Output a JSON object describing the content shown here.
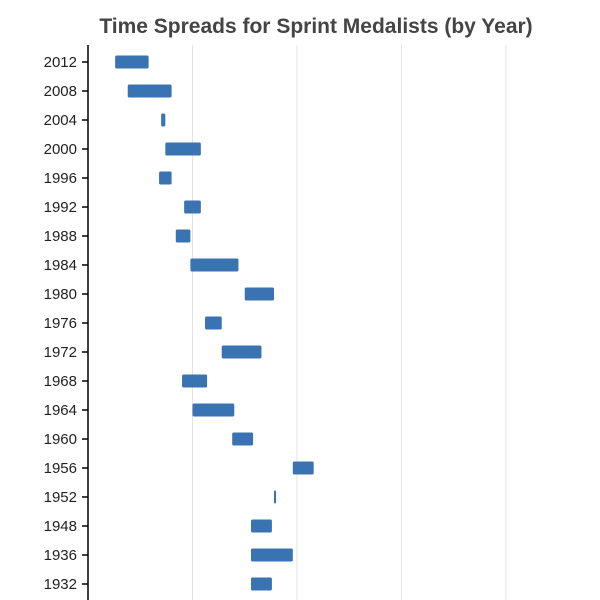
{
  "chart_data": {
    "type": "bar",
    "subtype": "floating-range",
    "title": "Time Spreads for Sprint Medalists (by Year)",
    "xlabel": "",
    "ylabel": "",
    "grid": true,
    "bar_color": "#3a73b2",
    "categories": [
      "2012",
      "2008",
      "2004",
      "2000",
      "1996",
      "1992",
      "1988",
      "1984",
      "1980",
      "1976",
      "1972",
      "1968",
      "1964",
      "1960",
      "1956",
      "1952",
      "1948",
      "1936",
      "1932"
    ],
    "ranges": [
      [
        9.63,
        9.79
      ],
      [
        9.69,
        9.9
      ],
      [
        9.85,
        9.87
      ],
      [
        9.87,
        10.04
      ],
      [
        9.84,
        9.9
      ],
      [
        9.96,
        10.04
      ],
      [
        9.92,
        9.99
      ],
      [
        9.99,
        10.22
      ],
      [
        10.25,
        10.39
      ],
      [
        10.06,
        10.14
      ],
      [
        10.14,
        10.33
      ],
      [
        9.95,
        10.07
      ],
      [
        10.0,
        10.2
      ],
      [
        10.19,
        10.29
      ],
      [
        10.48,
        10.58
      ],
      [
        10.39,
        10.4
      ],
      [
        10.28,
        10.38
      ],
      [
        10.28,
        10.48
      ],
      [
        10.28,
        10.38
      ]
    ],
    "xlim": [
      9.5,
      11.95
    ],
    "x_gridlines": [
      9.5,
      10.0,
      10.5,
      11.0,
      11.5
    ]
  }
}
